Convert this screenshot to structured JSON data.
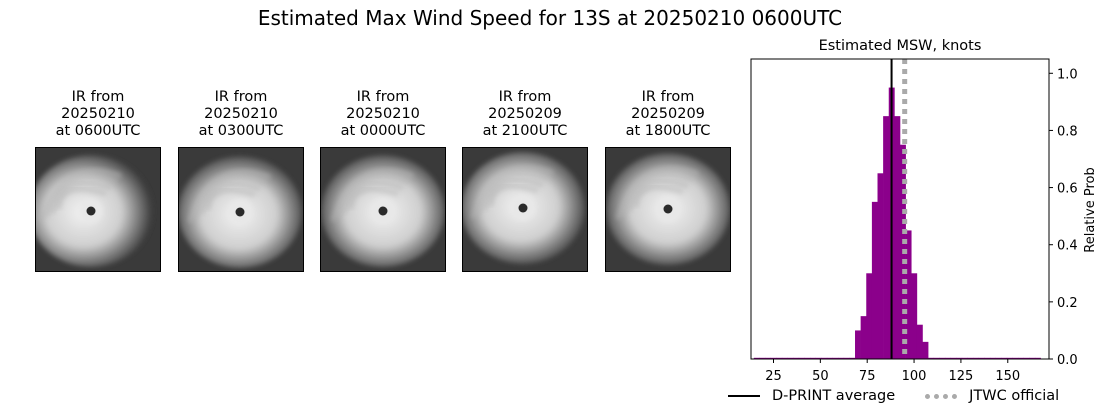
{
  "suptitle": "Estimated Max Wind Speed for 13S at 20250210 0600UTC",
  "panels": [
    {
      "line1": "IR from",
      "line2": "20250210",
      "line3": "at 0600UTC"
    },
    {
      "line1": "IR from",
      "line2": "20250210",
      "line3": "at 0300UTC"
    },
    {
      "line1": "IR from",
      "line2": "20250210",
      "line3": "at 0000UTC"
    },
    {
      "line1": "IR from",
      "line2": "20250209",
      "line3": "at 2100UTC"
    },
    {
      "line1": "IR from",
      "line2": "20250209",
      "line3": "at 1800UTC"
    }
  ],
  "legend": {
    "dprint": "D-PRINT average",
    "jtwc": "JTWC official"
  },
  "colors": {
    "bars": "#8b008b",
    "dprint_line": "#000000",
    "jtwc_line": "#aaaaaa"
  },
  "chart_data": {
    "type": "bar",
    "title": "Estimated MSW, knots",
    "ylabel": "Relative Prob",
    "xlim": [
      13,
      172
    ],
    "ylim": [
      0,
      1.05
    ],
    "xticks": [
      25,
      50,
      75,
      100,
      125,
      150
    ],
    "yticks": [
      "0.0",
      "0.2",
      "0.4",
      "0.6",
      "0.8",
      "1.0"
    ],
    "bin_width": 3,
    "bins": [
      {
        "x": 16,
        "y": 0.0
      },
      {
        "x": 19,
        "y": 0.0
      },
      {
        "x": 22,
        "y": 0.0
      },
      {
        "x": 25,
        "y": 0.0
      },
      {
        "x": 28,
        "y": 0.0
      },
      {
        "x": 31,
        "y": 0.0
      },
      {
        "x": 34,
        "y": 0.0
      },
      {
        "x": 37,
        "y": 0.0
      },
      {
        "x": 40,
        "y": 0.0
      },
      {
        "x": 43,
        "y": 0.0
      },
      {
        "x": 46,
        "y": 0.0
      },
      {
        "x": 49,
        "y": 0.0
      },
      {
        "x": 52,
        "y": 0.0
      },
      {
        "x": 55,
        "y": 0.0
      },
      {
        "x": 58,
        "y": 0.0
      },
      {
        "x": 61,
        "y": 0.0
      },
      {
        "x": 64,
        "y": 0.0
      },
      {
        "x": 67,
        "y": 0.0
      },
      {
        "x": 70,
        "y": 0.1
      },
      {
        "x": 73,
        "y": 0.15
      },
      {
        "x": 76,
        "y": 0.3
      },
      {
        "x": 79,
        "y": 0.55
      },
      {
        "x": 82,
        "y": 0.65
      },
      {
        "x": 85,
        "y": 0.85
      },
      {
        "x": 88,
        "y": 0.95
      },
      {
        "x": 91,
        "y": 0.85
      },
      {
        "x": 94,
        "y": 0.75
      },
      {
        "x": 97,
        "y": 0.45
      },
      {
        "x": 100,
        "y": 0.3
      },
      {
        "x": 103,
        "y": 0.12
      },
      {
        "x": 106,
        "y": 0.06
      },
      {
        "x": 109,
        "y": 0.0
      },
      {
        "x": 112,
        "y": 0.0
      },
      {
        "x": 115,
        "y": 0.0
      },
      {
        "x": 118,
        "y": 0.0
      },
      {
        "x": 121,
        "y": 0.0
      },
      {
        "x": 124,
        "y": 0.0
      },
      {
        "x": 127,
        "y": 0.0
      },
      {
        "x": 130,
        "y": 0.0
      },
      {
        "x": 133,
        "y": 0.0
      },
      {
        "x": 136,
        "y": 0.0
      },
      {
        "x": 139,
        "y": 0.0
      },
      {
        "x": 142,
        "y": 0.0
      },
      {
        "x": 145,
        "y": 0.0
      },
      {
        "x": 148,
        "y": 0.0
      },
      {
        "x": 151,
        "y": 0.0
      },
      {
        "x": 154,
        "y": 0.0
      },
      {
        "x": 157,
        "y": 0.0
      },
      {
        "x": 160,
        "y": 0.0
      },
      {
        "x": 163,
        "y": 0.0
      },
      {
        "x": 166,
        "y": 0.0
      }
    ],
    "dprint_average": 88,
    "jtwc_official": 95
  }
}
